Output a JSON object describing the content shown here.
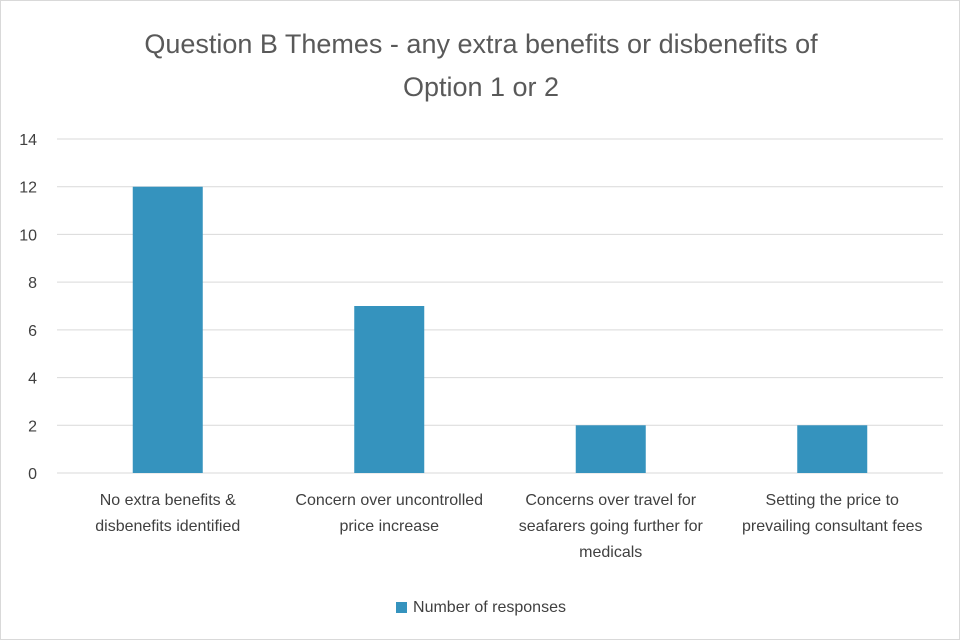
{
  "chart_data": {
    "type": "bar",
    "title_lines": [
      "Question B Themes - any extra benefits or disbenefits of",
      "Option 1 or 2"
    ],
    "categories": [
      [
        "No extra benefits &",
        "disbenefits identified"
      ],
      [
        "Concern over uncontrolled",
        "price increase"
      ],
      [
        "Concerns over travel for",
        "seafarers going further for",
        "medicals"
      ],
      [
        "Setting the price to",
        "prevailing consultant fees"
      ]
    ],
    "series": [
      {
        "name": "Number of responses",
        "values": [
          12,
          7,
          2,
          2
        ],
        "color": "#3593BE"
      }
    ],
    "ylim": [
      0,
      14
    ],
    "yticks": [
      0,
      2,
      4,
      6,
      8,
      10,
      12,
      14
    ],
    "grid": true,
    "legend_position": "bottom",
    "gridline_color": "#d9d9d9",
    "text_color": "#404040"
  }
}
